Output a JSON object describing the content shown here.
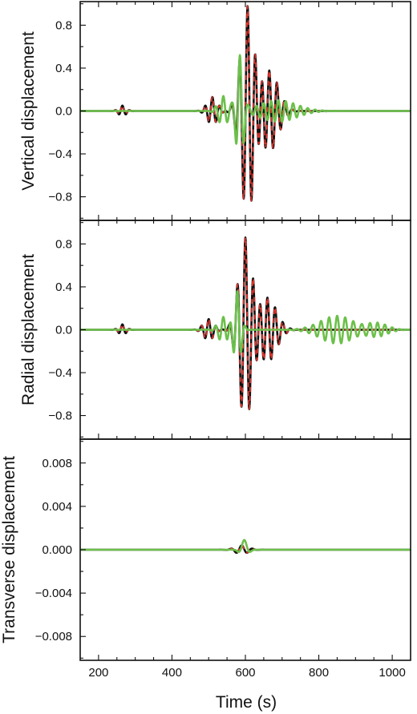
{
  "figure": {
    "xlabel": "Time (s)"
  },
  "colors": {
    "black": "#111111",
    "red": "#e0342c",
    "green": "#6cc04a"
  },
  "chart_data": [
    {
      "type": "line",
      "ylabel": "Vertical displacement",
      "xlim": [
        150,
        1050
      ],
      "ylim": [
        -1.02,
        1.02
      ],
      "x_ticks": [
        200,
        400,
        600,
        800,
        1000
      ],
      "y_ticks": [
        0.8,
        0.4,
        0.0,
        -0.4,
        -0.8
      ],
      "y_tick_labels": [
        "0.8",
        "0.4",
        "0.0",
        "−0.4",
        "−0.8"
      ],
      "x_tick_labels": [],
      "series": [
        {
          "style": "solid-black",
          "components": [
            {
              "center": 265,
              "amp": 0.05,
              "width": 14,
              "period": 20
            },
            {
              "center": 510,
              "amp": 0.13,
              "width": 20,
              "period": 20
            },
            {
              "center": 606,
              "amp": 0.97,
              "width": 26,
              "period": 22
            },
            {
              "center": 665,
              "amp": 0.38,
              "width": 35,
              "period": 21
            }
          ]
        },
        {
          "style": "dashed-red",
          "components": [
            {
              "center": 265,
              "amp": 0.05,
              "width": 14,
              "period": 20
            },
            {
              "center": 510,
              "amp": 0.13,
              "width": 20,
              "period": 20
            },
            {
              "center": 606,
              "amp": 0.97,
              "width": 26,
              "period": 22
            },
            {
              "center": 665,
              "amp": 0.38,
              "width": 35,
              "period": 21
            }
          ]
        },
        {
          "style": "solid-green",
          "components": [
            {
              "center": 585,
              "amp": 0.52,
              "width": 14,
              "period": 22
            },
            {
              "center": 540,
              "amp": 0.14,
              "width": 20,
              "period": 22
            },
            {
              "center": 690,
              "amp": 0.1,
              "width": 70,
              "period": 20
            }
          ]
        }
      ]
    },
    {
      "type": "line",
      "ylabel": "Radial displacement",
      "xlim": [
        150,
        1050
      ],
      "ylim": [
        -1.02,
        1.02
      ],
      "x_ticks": [
        200,
        400,
        600,
        800,
        1000
      ],
      "y_ticks": [
        0.8,
        0.4,
        0.0,
        -0.4,
        -0.8
      ],
      "y_tick_labels": [
        "0.8",
        "0.4",
        "0.0",
        "−0.4",
        "−0.8"
      ],
      "x_tick_labels": [],
      "series": [
        {
          "style": "solid-black",
          "components": [
            {
              "center": 265,
              "amp": 0.05,
              "width": 14,
              "period": 20
            },
            {
              "center": 500,
              "amp": 0.1,
              "width": 20,
              "period": 20
            },
            {
              "center": 600,
              "amp": 0.85,
              "width": 26,
              "period": 22
            },
            {
              "center": 660,
              "amp": 0.3,
              "width": 35,
              "period": 21
            }
          ]
        },
        {
          "style": "dashed-red",
          "components": [
            {
              "center": 265,
              "amp": 0.05,
              "width": 14,
              "period": 20
            },
            {
              "center": 500,
              "amp": 0.1,
              "width": 20,
              "period": 20
            },
            {
              "center": 600,
              "amp": 0.85,
              "width": 26,
              "period": 22
            },
            {
              "center": 660,
              "amp": 0.3,
              "width": 35,
              "period": 21
            }
          ]
        },
        {
          "style": "solid-green",
          "components": [
            {
              "center": 578,
              "amp": 0.36,
              "width": 14,
              "period": 22
            },
            {
              "center": 540,
              "amp": 0.12,
              "width": 20,
              "period": 22
            },
            {
              "center": 850,
              "amp": 0.13,
              "width": 65,
              "period": 22
            },
            {
              "center": 960,
              "amp": 0.06,
              "width": 40,
              "period": 20
            }
          ]
        }
      ]
    },
    {
      "type": "line",
      "ylabel": "Transverse displacement",
      "xlim": [
        150,
        1050
      ],
      "ylim": [
        -0.0102,
        0.0102
      ],
      "x_ticks": [
        200,
        400,
        600,
        800,
        1000
      ],
      "y_ticks": [
        0.008,
        0.004,
        0.0,
        -0.004,
        -0.008
      ],
      "y_tick_labels": [
        "0.008",
        "0.004",
        "0.000",
        "−0.004",
        "−0.008"
      ],
      "x_tick_labels": [
        "200",
        "400",
        "600",
        "800",
        "1000"
      ],
      "series": [
        {
          "style": "solid-black",
          "components": [
            {
              "center": 590,
              "amp": 0.0004,
              "width": 25,
              "period": 30
            }
          ]
        },
        {
          "style": "dashed-red",
          "components": [
            {
              "center": 590,
              "amp": 0.0004,
              "width": 25,
              "period": 30
            }
          ]
        },
        {
          "style": "solid-green",
          "components": [
            {
              "center": 597,
              "amp": 0.0009,
              "width": 14,
              "period": 40
            }
          ]
        }
      ]
    }
  ]
}
